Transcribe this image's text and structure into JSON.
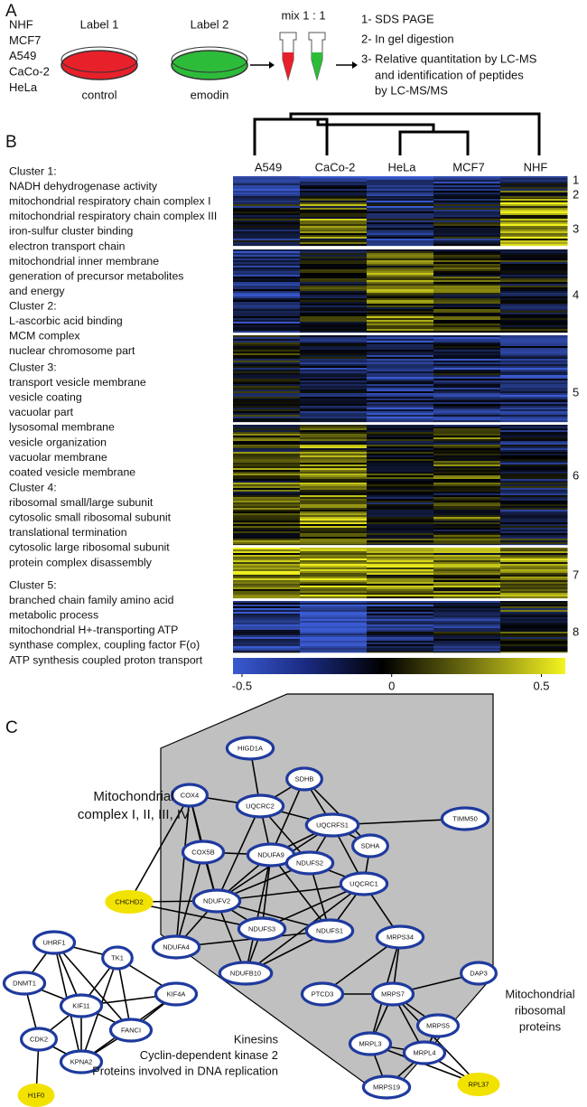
{
  "panel_a": {
    "label": "A",
    "cell_lines": [
      "NHF",
      "MCF7",
      "A549",
      "CaCo-2",
      "HeLa"
    ],
    "dish_1": {
      "label": "Label 1",
      "condition": "control"
    },
    "dish_2": {
      "label": "Label 2",
      "condition": "emodin"
    },
    "mix": "mix 1 : 1",
    "steps": [
      "1- SDS PAGE",
      "2- In gel digestion",
      "3- Relative quantitation by LC-MS",
      "and identification of peptides",
      "by LC-MS/MS"
    ]
  },
  "panel_b": {
    "label": "B",
    "columns": [
      "A549",
      "CaCo-2",
      "HeLa",
      "MCF7",
      "NHF"
    ],
    "clusters": [
      {
        "title": "Cluster 1:",
        "terms": [
          "NADH dehydrogenase activity",
          "mitochondrial respiratory chain complex I",
          "mitochondrial respiratory chain complex III",
          "iron-sulfur cluster binding",
          "electron transport chain",
          "mitochondrial inner membrane",
          "generation of precursor metabolites",
          "and energy"
        ]
      },
      {
        "title": "Cluster 2:",
        "terms": [
          "L-ascorbic acid binding",
          "MCM complex",
          "nuclear chromosome part"
        ]
      },
      {
        "title": "Cluster 3:",
        "terms": [
          "transport vesicle membrane",
          "vesicle coating",
          "vacuolar part",
          "lysosomal membrane",
          "vesicle organization",
          "vacuolar membrane",
          "coated vesicle membrane"
        ]
      },
      {
        "title": "Cluster 4:",
        "terms": [
          "ribosomal small/large subunit",
          "cytosolic small ribosomal subunit",
          "translational termination",
          "cytosolic large ribosomal subunit",
          "protein complex disassembly"
        ]
      },
      {
        "title": "Cluster 5:",
        "terms": [
          "branched chain family amino acid",
          "metabolic process",
          "mitochondrial H+-transporting ATP",
          "synthase complex, coupling factor F(o)",
          "ATP synthesis coupled proton transport"
        ]
      }
    ],
    "blocks": [
      "1",
      "2",
      "3",
      "4",
      "5",
      "6",
      "7",
      "8"
    ],
    "colorbar": {
      "range": [
        -0.53,
        0.58
      ],
      "ticks": [
        -0.5,
        0,
        0.5
      ]
    }
  },
  "panel_c": {
    "label": "C",
    "nodes": [
      {
        "label": "HIGD1A",
        "highlighted": false
      },
      {
        "label": "SDHB",
        "highlighted": false
      },
      {
        "label": "COX4",
        "highlighted": false
      },
      {
        "label": "UQCRC2",
        "highlighted": false
      },
      {
        "label": "UQCRFS1",
        "highlighted": false
      },
      {
        "label": "TIMM50",
        "highlighted": false
      },
      {
        "label": "SDHA",
        "highlighted": false
      },
      {
        "label": "COX5B",
        "highlighted": false
      },
      {
        "label": "NDUFA9",
        "highlighted": false
      },
      {
        "label": "NDUFS2",
        "highlighted": false
      },
      {
        "label": "UQCRC1",
        "highlighted": false
      },
      {
        "label": "CHCHD2",
        "highlighted": true
      },
      {
        "label": "NDUFV2",
        "highlighted": false
      },
      {
        "label": "NDUFS3",
        "highlighted": false
      },
      {
        "label": "NDUFS1",
        "highlighted": false
      },
      {
        "label": "MRPS34",
        "highlighted": false
      },
      {
        "label": "NDUFA4",
        "highlighted": false
      },
      {
        "label": "NDUFB10",
        "highlighted": false
      },
      {
        "label": "DAP3",
        "highlighted": false
      },
      {
        "label": "PTCD3",
        "highlighted": false
      },
      {
        "label": "MRPS7",
        "highlighted": false
      },
      {
        "label": "MRPS5",
        "highlighted": false
      },
      {
        "label": "MRPL3",
        "highlighted": false
      },
      {
        "label": "MRPL4",
        "highlighted": false
      },
      {
        "label": "MRPS19",
        "highlighted": false
      },
      {
        "label": "RPL37",
        "highlighted": true
      },
      {
        "label": "UHRF1",
        "highlighted": false
      },
      {
        "label": "TK1",
        "highlighted": false
      },
      {
        "label": "DNMT1",
        "highlighted": false
      },
      {
        "label": "KIF11",
        "highlighted": false
      },
      {
        "label": "KIF4A",
        "highlighted": false
      },
      {
        "label": "FANCI",
        "highlighted": false
      },
      {
        "label": "CDK2",
        "highlighted": false
      },
      {
        "label": "KPNA2",
        "highlighted": false
      },
      {
        "label": "H1F0",
        "highlighted": true
      }
    ],
    "group_labels": {
      "mitochondrial_complex": [
        "Mitochondrial",
        "complex I, II, III, IV"
      ],
      "mitochondrial_ribosomal": [
        "Mitochondrial",
        "ribosomal",
        "proteins"
      ],
      "replication": [
        "Kinesins",
        "Cyclin-dependent kinase 2",
        "Proteins involved in DNA replication"
      ]
    }
  }
}
